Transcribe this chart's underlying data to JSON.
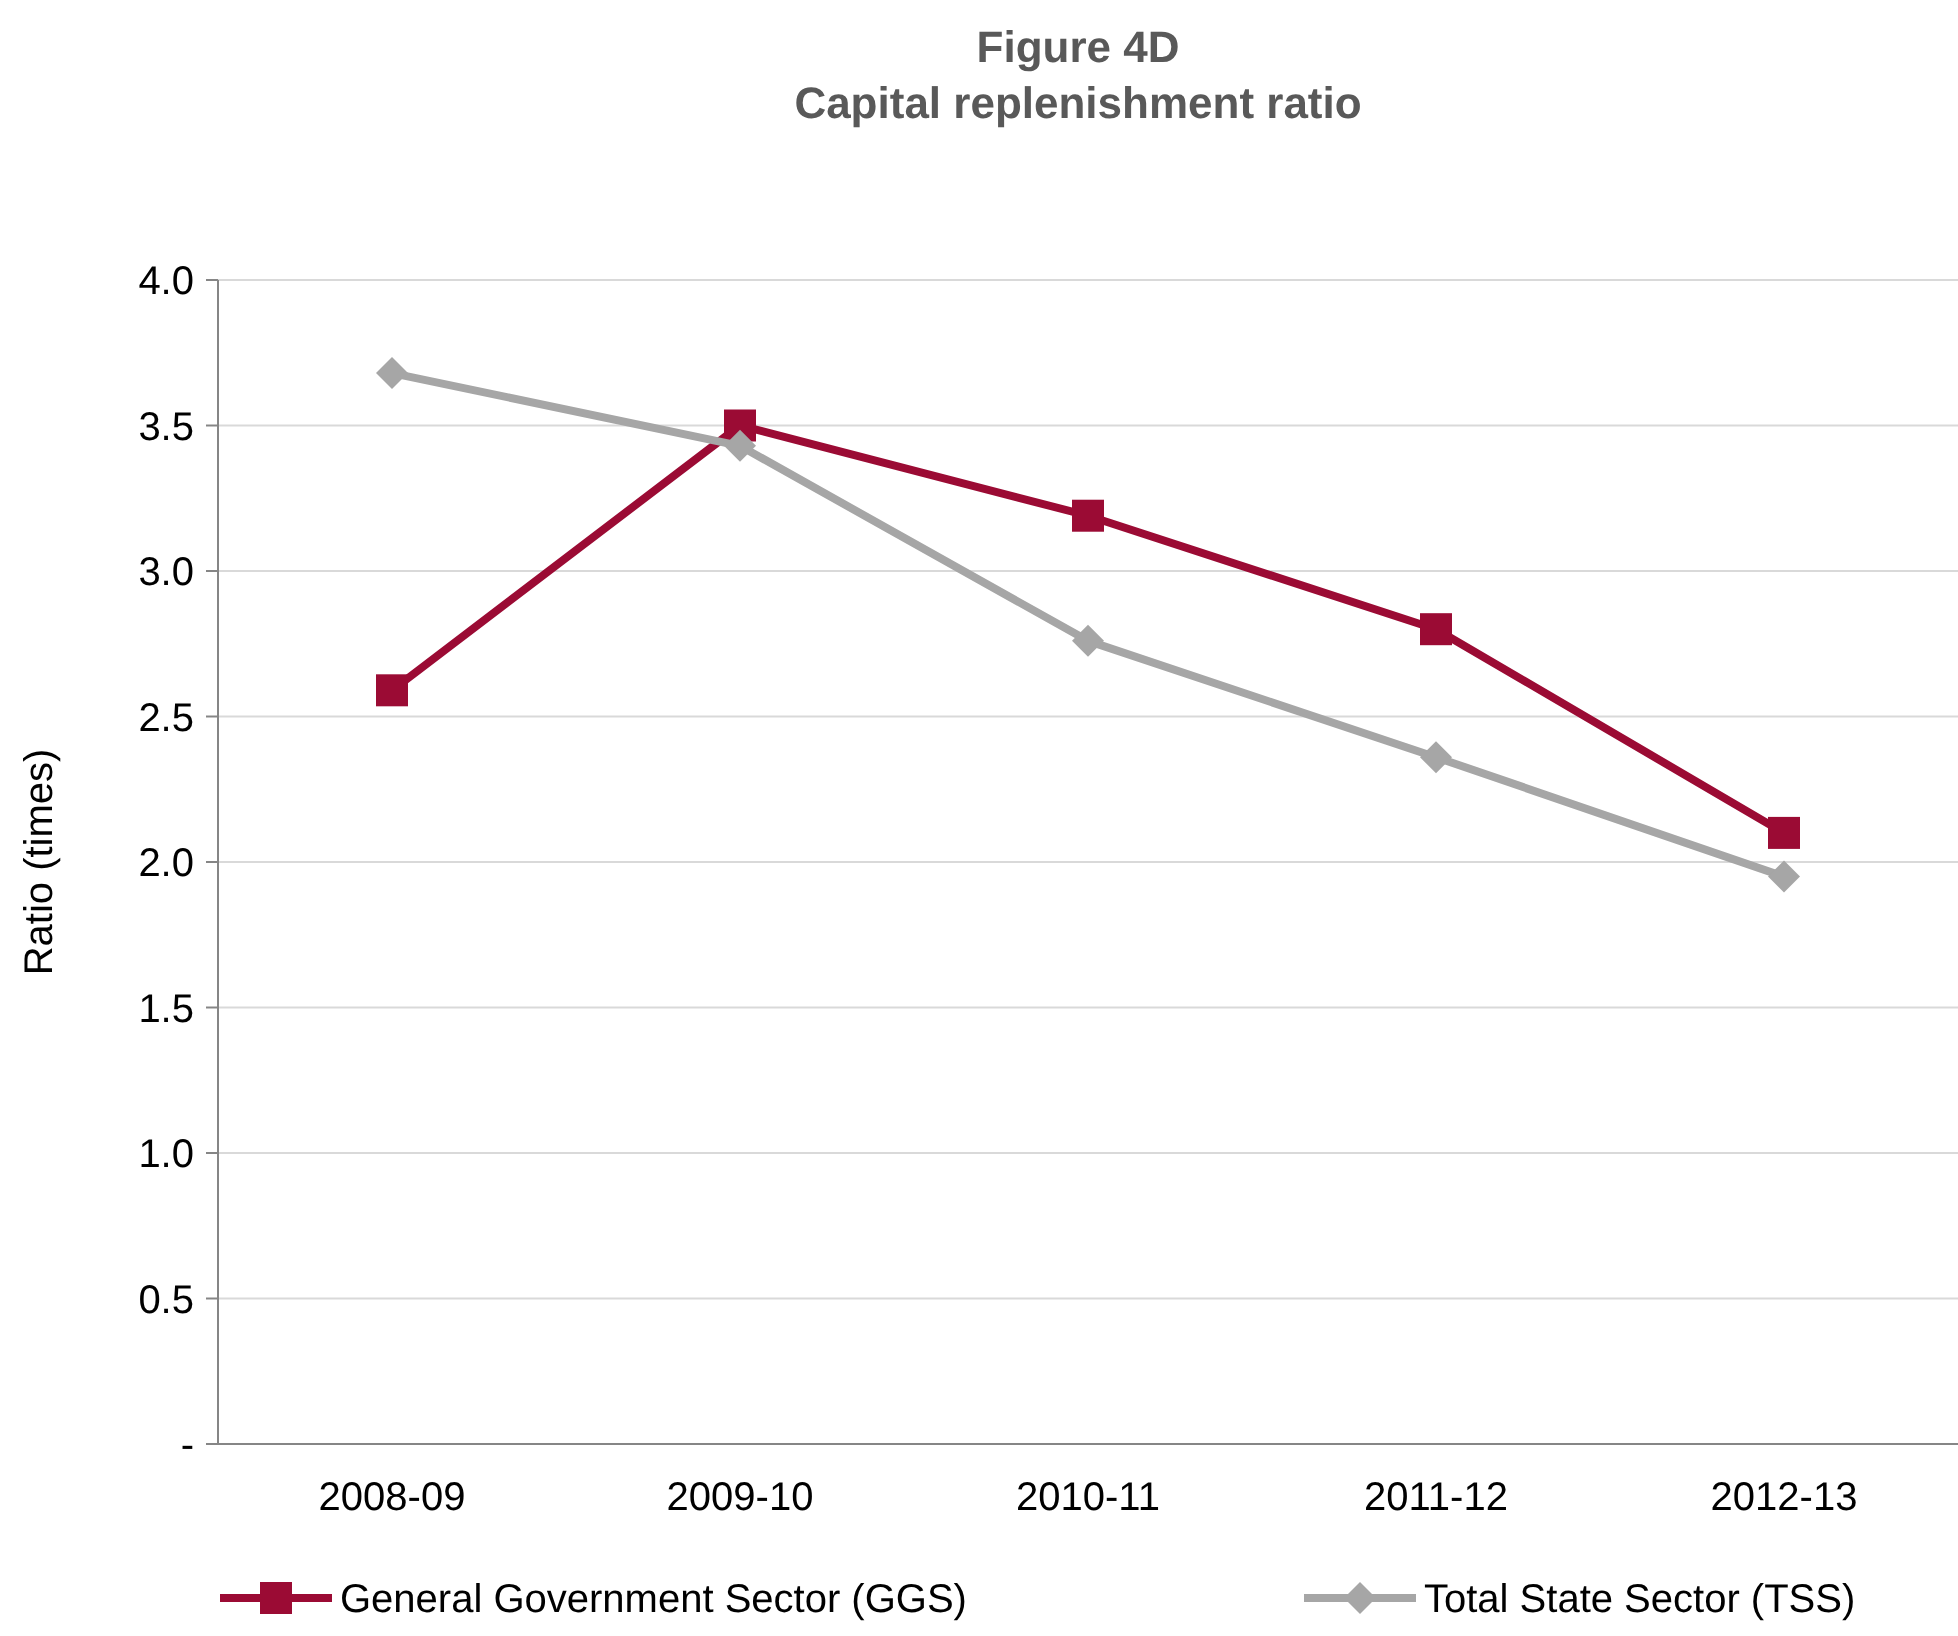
{
  "chart_data": {
    "type": "line",
    "title": "Figure 4D\nCapital replenishment ratio",
    "ylabel": "Ratio (times)",
    "categories": [
      "2008-09",
      "2009-10",
      "2010-11",
      "2011-12",
      "2012-13"
    ],
    "series": [
      {
        "name": "General Government Sector (GGS)",
        "color": "#9b0b34",
        "values": [
          2.59,
          3.5,
          3.19,
          2.8,
          2.1
        ],
        "marker": "square"
      },
      {
        "name": "Total State Sector (TSS)",
        "color": "#a6a6a6",
        "values": [
          3.68,
          3.43,
          2.76,
          2.36,
          1.95
        ],
        "marker": "diamond"
      }
    ],
    "ylim": [
      0,
      4
    ],
    "yticks": [
      {
        "value": 0,
        "label": "-"
      },
      {
        "value": 0.5,
        "label": "0.5"
      },
      {
        "value": 1,
        "label": "1.0"
      },
      {
        "value": 1.5,
        "label": "1.5"
      },
      {
        "value": 2,
        "label": "2.0"
      },
      {
        "value": 2.5,
        "label": "2.5"
      },
      {
        "value": 3,
        "label": "3.0"
      },
      {
        "value": 3.5,
        "label": "3.5"
      },
      {
        "value": 4,
        "label": "4.0"
      }
    ],
    "grid": "y",
    "legend": "bottom",
    "line_style": "solid"
  }
}
